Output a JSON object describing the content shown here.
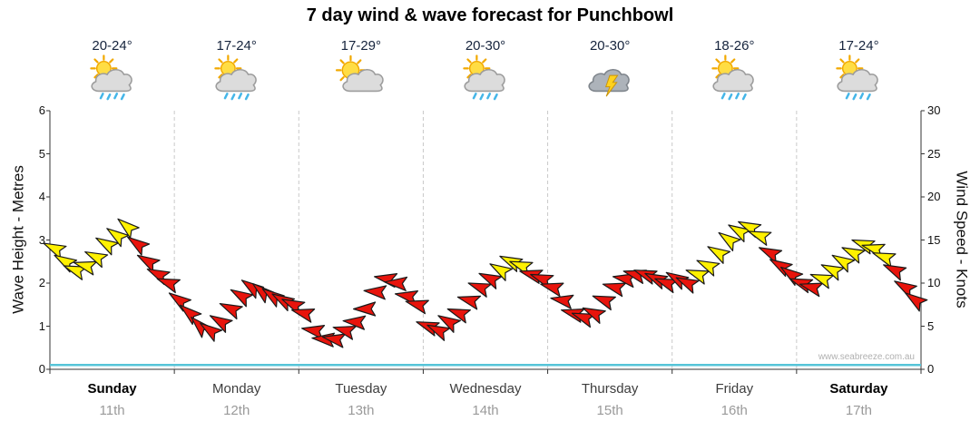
{
  "title": "7 day wind & wave forecast for Punchbowl",
  "watermark": "www.seabreeze.com.au",
  "axes": {
    "left_label": "Wave Height - Metres",
    "right_label": "Wind Speed - Knots",
    "left_ticks": [
      0,
      1,
      2,
      3,
      4,
      5,
      6
    ],
    "right_ticks": [
      0,
      5,
      10,
      15,
      20,
      25,
      30
    ],
    "left_range": [
      0,
      6
    ],
    "right_range": [
      0,
      30
    ]
  },
  "colors": {
    "arrow_yellow": "#FFF100",
    "arrow_red": "#E8140C",
    "arrow_outline": "#1a1a1a",
    "wave_line": "#56C4D8",
    "grid": "#c9c9c9",
    "axis": "#333333"
  },
  "days": [
    {
      "name": "Sunday",
      "date": "11th",
      "temp": "20-24°",
      "icon": "sun-cloud-rain",
      "bold": true
    },
    {
      "name": "Monday",
      "date": "12th",
      "temp": "17-24°",
      "icon": "sun-cloud-rain",
      "bold": false
    },
    {
      "name": "Tuesday",
      "date": "13th",
      "temp": "17-29°",
      "icon": "sun-cloud",
      "bold": false
    },
    {
      "name": "Wednesday",
      "date": "14th",
      "temp": "20-30°",
      "icon": "sun-cloud-rain",
      "bold": false
    },
    {
      "name": "Thursday",
      "date": "15th",
      "temp": "20-30°",
      "icon": "storm",
      "bold": false
    },
    {
      "name": "Friday",
      "date": "16th",
      "temp": "18-26°",
      "icon": "sun-cloud-rain",
      "bold": false
    },
    {
      "name": "Saturday",
      "date": "17th",
      "temp": "17-24°",
      "icon": "sun-cloud-rain",
      "bold": true
    }
  ],
  "chart_data": {
    "type": "wind-arrow time series with flat wave-height line",
    "x_axis_days": [
      "Sunday 11th",
      "Monday 12th",
      "Tuesday 13th",
      "Wednesday 14th",
      "Thursday 15th",
      "Friday 16th",
      "Saturday 17th"
    ],
    "wave_axis": {
      "label": "Wave Height - Metres",
      "range": [
        0,
        6
      ]
    },
    "wind_axis": {
      "label": "Wind Speed - Knots",
      "range": [
        0,
        30
      ]
    },
    "wave_height_m": {
      "approx_constant_m": 0.1
    },
    "wind": {
      "interval_hours": 2,
      "color_map": {
        "y": "#FFF100",
        "r": "#E8140C"
      },
      "per_day": [
        {
          "day": "Sunday",
          "speeds_knots": [
            14,
            12.5,
            11.5,
            12,
            13,
            14.5,
            15.5,
            16.5,
            14.5,
            12.5,
            11,
            10
          ],
          "colors": [
            "y",
            "y",
            "y",
            "y",
            "y",
            "y",
            "y",
            "y",
            "r",
            "r",
            "r",
            "r"
          ],
          "directions_deg": [
            205,
            210,
            200,
            195,
            205,
            210,
            215,
            220,
            215,
            210,
            205,
            200
          ]
        },
        {
          "day": "Monday",
          "speeds_knots": [
            8,
            6.5,
            5,
            4.5,
            5.5,
            7,
            8.5,
            9.5,
            9,
            8.5,
            8,
            7.5
          ],
          "colors": [
            "r",
            "r",
            "r",
            "r",
            "r",
            "r",
            "r",
            "r",
            "r",
            "r",
            "r",
            "r"
          ],
          "directions_deg": [
            215,
            220,
            225,
            215,
            210,
            205,
            210,
            215,
            220,
            215,
            210,
            205
          ]
        },
        {
          "day": "Tuesday",
          "speeds_knots": [
            6.5,
            4.5,
            3.5,
            3.5,
            4.5,
            5.5,
            7,
            9,
            10.5,
            10,
            8.5,
            7.5
          ],
          "colors": [
            "r",
            "r",
            "r",
            "r",
            "r",
            "r",
            "r",
            "r",
            "r",
            "r",
            "r",
            "r"
          ],
          "directions_deg": [
            195,
            190,
            185,
            190,
            195,
            185,
            180,
            185,
            190,
            185,
            190,
            195
          ]
        },
        {
          "day": "Wednesday",
          "speeds_knots": [
            5,
            4.5,
            5.5,
            6.5,
            8,
            9.5,
            10.5,
            11.5,
            12.5,
            12,
            11,
            10.5
          ],
          "colors": [
            "r",
            "r",
            "r",
            "r",
            "r",
            "r",
            "r",
            "y",
            "y",
            "y",
            "r",
            "r"
          ],
          "directions_deg": [
            200,
            205,
            210,
            200,
            195,
            200,
            205,
            210,
            205,
            200,
            195,
            200
          ]
        },
        {
          "day": "Thursday",
          "speeds_knots": [
            9.5,
            8,
            6.5,
            6,
            6.5,
            8,
            9.5,
            10.5,
            11,
            11,
            10.5,
            10
          ],
          "colors": [
            "r",
            "r",
            "r",
            "r",
            "r",
            "r",
            "r",
            "r",
            "r",
            "r",
            "r",
            "r"
          ],
          "directions_deg": [
            195,
            190,
            195,
            200,
            205,
            200,
            195,
            190,
            195,
            200,
            205,
            200
          ]
        },
        {
          "day": "Friday",
          "speeds_knots": [
            10.5,
            10,
            11,
            12,
            13.5,
            15,
            16,
            16.5,
            15.5,
            13.5,
            12,
            11
          ],
          "colors": [
            "r",
            "r",
            "y",
            "y",
            "y",
            "y",
            "y",
            "y",
            "y",
            "r",
            "r",
            "r"
          ],
          "directions_deg": [
            210,
            205,
            200,
            205,
            210,
            215,
            210,
            205,
            200,
            205,
            210,
            215
          ]
        },
        {
          "day": "Saturday",
          "speeds_knots": [
            10,
            9.5,
            10.5,
            11.5,
            12.5,
            13.5,
            14.5,
            14,
            13,
            11.5,
            9.5,
            8
          ],
          "colors": [
            "r",
            "r",
            "y",
            "y",
            "y",
            "y",
            "y",
            "y",
            "y",
            "r",
            "r",
            "r"
          ],
          "directions_deg": [
            200,
            195,
            200,
            205,
            210,
            205,
            200,
            195,
            200,
            205,
            210,
            215
          ]
        }
      ]
    }
  }
}
